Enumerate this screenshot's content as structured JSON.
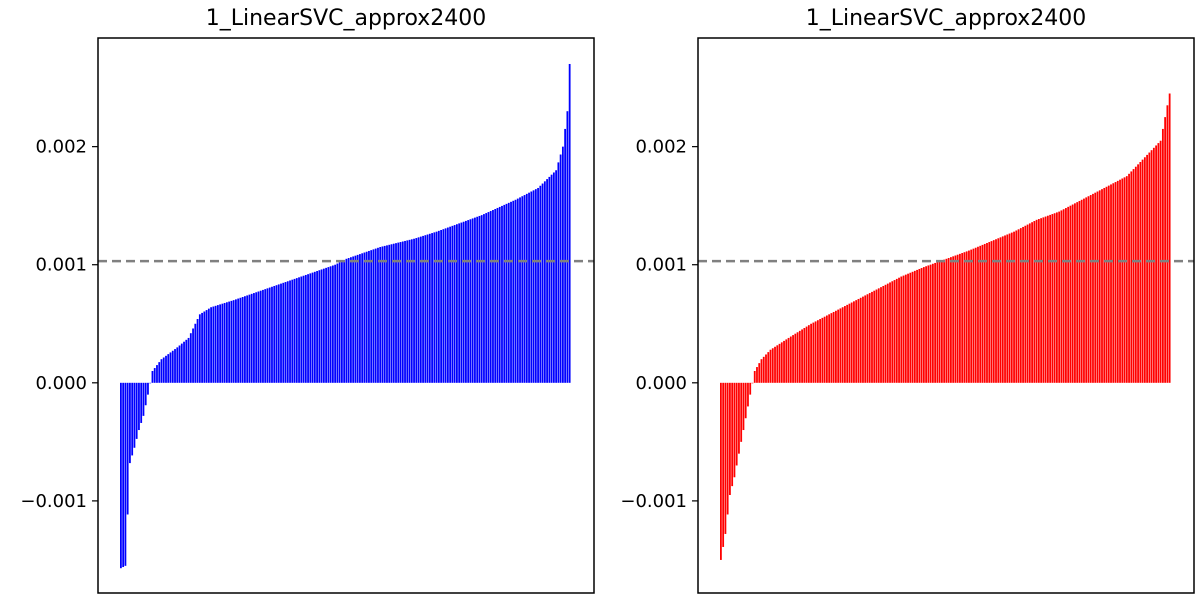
{
  "chart_data": [
    {
      "type": "bar",
      "title": "1_LinearSVC_approx2400",
      "xlabel": "",
      "ylabel": "",
      "ylim": [
        -0.00178,
        0.00292
      ],
      "yticks": [
        -0.001,
        0.0,
        0.001,
        0.002
      ],
      "ytick_labels": [
        "−0.001",
        "0.000",
        "0.001",
        "0.002"
      ],
      "bar_count": 200,
      "series": [
        {
          "color": "#0000ff",
          "profile": [
            [
              0,
              -0.00157
            ],
            [
              2,
              -0.00155
            ],
            [
              4,
              -0.00068
            ],
            [
              6,
              -0.00055
            ],
            [
              8,
              -0.0004
            ],
            [
              10,
              -0.00028
            ],
            [
              12,
              -0.0001
            ],
            [
              14,
              0.0001
            ],
            [
              18,
              0.0002
            ],
            [
              25,
              0.0003
            ],
            [
              30,
              0.00038
            ],
            [
              33,
              0.0005
            ],
            [
              35,
              0.00058
            ],
            [
              40,
              0.00064
            ],
            [
              50,
              0.0007
            ],
            [
              65,
              0.0008
            ],
            [
              80,
              0.0009
            ],
            [
              95,
              0.001
            ],
            [
              100,
              0.00105
            ],
            [
              115,
              0.00115
            ],
            [
              130,
              0.00122
            ],
            [
              140,
              0.00128
            ],
            [
              150,
              0.00135
            ],
            [
              160,
              0.00142
            ],
            [
              175,
              0.00155
            ],
            [
              185,
              0.00165
            ],
            [
              193,
              0.0018
            ],
            [
              196,
              0.002
            ],
            [
              198,
              0.0023
            ],
            [
              199,
              0.0027
            ]
          ]
        }
      ],
      "reference_line": {
        "y": 0.00103,
        "style": "dashed",
        "color": "#808080"
      },
      "grid": false
    },
    {
      "type": "bar",
      "title": "1_LinearSVC_approx2400",
      "xlabel": "",
      "ylabel": "",
      "ylim": [
        -0.00178,
        0.00292
      ],
      "yticks": [
        -0.001,
        0.0,
        0.001,
        0.002
      ],
      "ytick_labels": [
        "−0.001",
        "0.000",
        "0.001",
        "0.002"
      ],
      "bar_count": 200,
      "series": [
        {
          "color": "#ff0000",
          "profile": [
            [
              0,
              -0.0015
            ],
            [
              2,
              -0.00128
            ],
            [
              4,
              -0.00095
            ],
            [
              6,
              -0.0008
            ],
            [
              8,
              -0.0006
            ],
            [
              10,
              -0.0004
            ],
            [
              12,
              -0.0002
            ],
            [
              14,
              0.0
            ],
            [
              15,
              0.0001
            ],
            [
              18,
              0.0002
            ],
            [
              22,
              0.00028
            ],
            [
              30,
              0.00038
            ],
            [
              40,
              0.0005
            ],
            [
              50,
              0.0006
            ],
            [
              60,
              0.0007
            ],
            [
              70,
              0.0008
            ],
            [
              80,
              0.0009
            ],
            [
              90,
              0.00098
            ],
            [
              100,
              0.00105
            ],
            [
              110,
              0.00112
            ],
            [
              120,
              0.0012
            ],
            [
              130,
              0.00128
            ],
            [
              140,
              0.00138
            ],
            [
              150,
              0.00145
            ],
            [
              160,
              0.00155
            ],
            [
              170,
              0.00165
            ],
            [
              180,
              0.00175
            ],
            [
              190,
              0.00195
            ],
            [
              195,
              0.00205
            ],
            [
              197,
              0.00225
            ],
            [
              199,
              0.00245
            ]
          ]
        }
      ],
      "reference_line": {
        "y": 0.00103,
        "style": "dashed",
        "color": "#808080"
      },
      "grid": false
    }
  ]
}
